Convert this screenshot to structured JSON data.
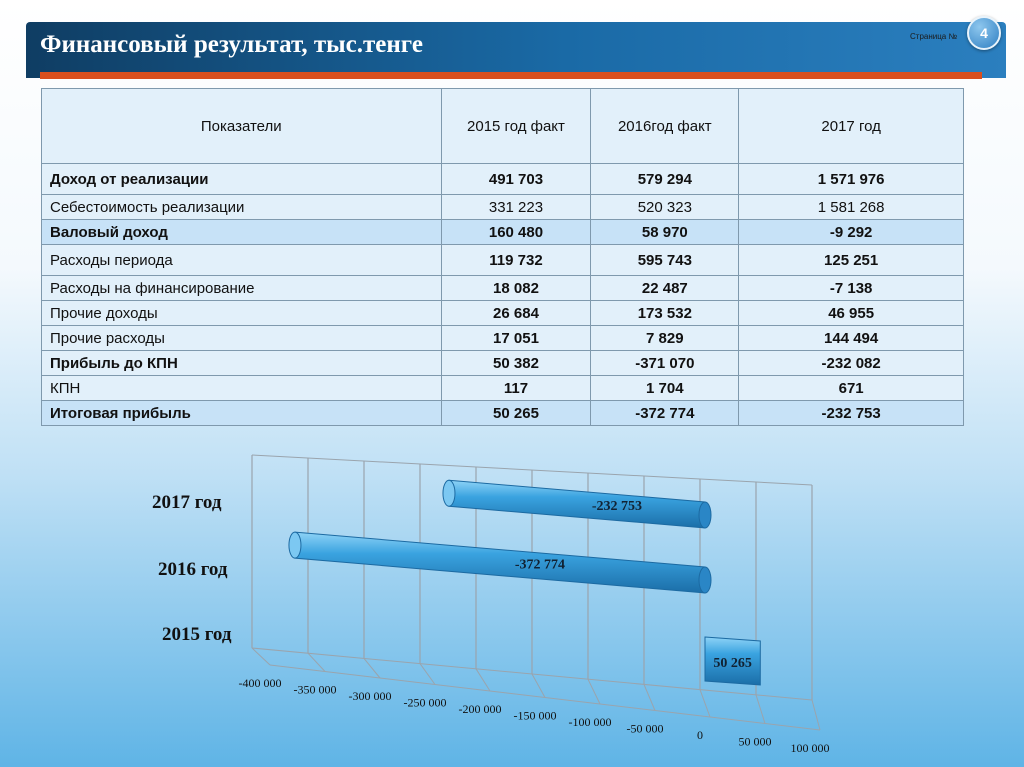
{
  "header": {
    "title": "Финансовый результат, тыс.тенге",
    "page_label": "Страница №",
    "page_number": "4"
  },
  "table": {
    "columns": [
      "Показатели",
      "2015 год факт",
      "2016год факт",
      "2017 год"
    ],
    "rows": [
      {
        "label": "Доход от реализации",
        "v2015": "491 703",
        "v2016": "579 294",
        "v2017": "1 571 976"
      },
      {
        "label": "Себестоимость реализации",
        "v2015": "331 223",
        "v2016": "520 323",
        "v2017": "1 581 268"
      },
      {
        "label": "Валовый доход",
        "v2015": "160 480",
        "v2016": "58 970",
        "v2017": "-9 292"
      },
      {
        "label": "Расходы периода",
        "v2015": "119 732",
        "v2016": "595 743",
        "v2017": "125 251"
      },
      {
        "label": "Расходы на финансирование",
        "v2015": "18 082",
        "v2016": "22 487",
        "v2017": "-7 138"
      },
      {
        "label": "Прочие доходы",
        "v2015": "26 684",
        "v2016": "173 532",
        "v2017": "46 955"
      },
      {
        "label": "Прочие расходы",
        "v2015": "17 051",
        "v2016": "7 829",
        "v2017": "144 494"
      },
      {
        "label": "Прибыль до КПН",
        "v2015": "50 382",
        "v2016": "-371 070",
        "v2017": "-232 082"
      },
      {
        "label": "КПН",
        "v2015": "117",
        "v2016": "1 704",
        "v2017": "671"
      },
      {
        "label": "Итоговая прибыль",
        "v2015": "50 265",
        "v2016": "-372 774",
        "v2017": "-232 753"
      }
    ]
  },
  "chart_data": {
    "type": "bar",
    "orientation": "horizontal",
    "style": "3d-cylinder",
    "categories": [
      "2015 год",
      "2016 год",
      "2017 год"
    ],
    "values": [
      50265,
      -372774,
      -232753
    ],
    "data_labels": [
      "50 265",
      "-372 774",
      "-232 753"
    ],
    "tick_labels": [
      "-400 000",
      "-350 000",
      "-300 000",
      "-250 000",
      "-200 000",
      "-150 000",
      "-100 000",
      "-50 000",
      "0",
      "50 000",
      "100 000"
    ],
    "xlim": [
      -400000,
      100000
    ],
    "grid": true,
    "bar_color": "#3aa3e0"
  }
}
